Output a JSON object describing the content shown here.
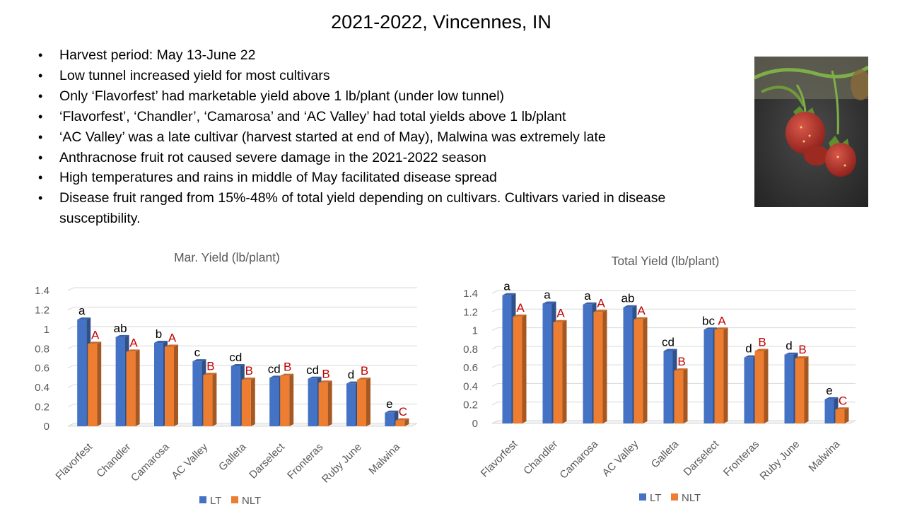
{
  "title": "2021-2022, Vincennes, IN",
  "bullets": [
    "Harvest period: May 13-June 22",
    "Low tunnel increased yield for most cultivars",
    "Only ‘Flavorfest’ had marketable yield above 1 lb/plant (under low tunnel)",
    "‘Flavorfest’, ‘Chandler’, ‘Camarosa’ and ‘AC Valley’ had total yields above 1 lb/plant",
    "‘AC Valley’ was a late cultivar (harvest started at end of May), Malwina was extremely late",
    "Anthracnose fruit rot caused severe damage in the 2021-2022 season",
    "High temperatures and rains in middle of May facilitated disease spread",
    "Disease fruit ranged from 15%-48% of total yield depending on cultivars. Cultivars varied in disease susceptibility."
  ],
  "photo": {
    "icon": "strawberry-photo",
    "colors": {
      "leaf": "#6f9a3a",
      "berry": "#c0392b",
      "ground": "#3b3b3b"
    }
  },
  "colors": {
    "LT": "#4472c4",
    "NLT": "#ed7d31",
    "nlt_letters": "#c00000",
    "axis_text": "#595959",
    "grid": "#d9d9d9"
  },
  "chart_data": [
    {
      "type": "bar",
      "title": "Mar. Yield (lb/plant)",
      "categories": [
        "Flavorfest",
        "Chandler",
        "Camarosa",
        "AC Valley",
        "Galleta",
        "Darselect",
        "Fronteras",
        "Ruby June",
        "Malwina"
      ],
      "ylim": [
        0,
        1.4
      ],
      "yticks": [
        "0",
        "0.2",
        "0.4",
        "0.6",
        "0.8",
        "1",
        "1.2",
        "1.4"
      ],
      "grid": true,
      "legend": "bottom",
      "series": [
        {
          "name": "LT",
          "values": [
            1.1,
            0.92,
            0.86,
            0.67,
            0.62,
            0.5,
            0.49,
            0.44,
            0.14
          ],
          "letters": [
            "a",
            "ab",
            "b",
            "c",
            "cd",
            "cd",
            "cd",
            "d",
            "e"
          ]
        },
        {
          "name": "NLT",
          "values": [
            0.85,
            0.77,
            0.82,
            0.53,
            0.48,
            0.52,
            0.45,
            0.48,
            0.06
          ],
          "letters": [
            "A",
            "A",
            "A",
            "B",
            "B",
            "B",
            "B",
            "B",
            "C"
          ]
        }
      ]
    },
    {
      "type": "bar",
      "title": "Total Yield (lb/plant)",
      "categories": [
        "Flavorfest",
        "Chandler",
        "Camarosa",
        "AC Valley",
        "Galleta",
        "Darselect",
        "Fronteras",
        "Ruby June",
        "Malwina"
      ],
      "ylim": [
        0,
        1.4
      ],
      "yticks": [
        "0",
        "0.2",
        "0.4",
        "0.6",
        "0.8",
        "1",
        "1.2",
        "1.4"
      ],
      "grid": true,
      "legend": "bottom",
      "series": [
        {
          "name": "LT",
          "values": [
            1.38,
            1.29,
            1.28,
            1.25,
            0.78,
            1.01,
            0.71,
            0.74,
            0.26
          ],
          "letters": [
            "a",
            "a",
            "a",
            "ab",
            "cd",
            "bc",
            "d",
            "d",
            "e"
          ]
        },
        {
          "name": "NLT",
          "values": [
            1.15,
            1.09,
            1.2,
            1.12,
            0.57,
            1.01,
            0.78,
            0.7,
            0.15
          ],
          "letters": [
            "A",
            "A",
            "A",
            "A",
            "B",
            "A",
            "B",
            "B",
            "C"
          ]
        }
      ]
    }
  ]
}
